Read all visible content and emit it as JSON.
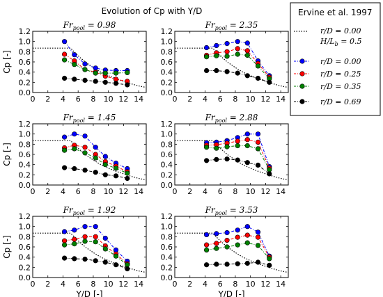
{
  "figure_title": "Evolution of Cp with Y/D",
  "colors": {
    "series_0": "#0000ff",
    "series_1": "#ff0000",
    "series_2": "#008000",
    "series_3": "#000000",
    "reference": "#000000"
  },
  "legend": {
    "reference_title": "Ervine et al. 1997",
    "reference_lines": [
      "r/D = 0.00",
      "H/L_b = 0.5"
    ],
    "entries": [
      "r/D = 0.00",
      "r/D = 0.25",
      "r/D = 0.35",
      "r/D = 0.69"
    ]
  },
  "chart_data": [
    {
      "type": "line",
      "title": "Fr_pool = 0.98",
      "xlabel": "",
      "ylabel": "Cp [-]",
      "xlim": [
        0,
        15
      ],
      "ylim": [
        0,
        1.2
      ],
      "xticks": [
        0,
        2,
        4,
        6,
        8,
        10,
        12,
        14
      ],
      "yticks": [
        0.0,
        0.2,
        0.4,
        0.6,
        0.8,
        1.0,
        1.2
      ],
      "x": [
        4.2,
        5.5,
        6.9,
        8.3,
        9.6,
        11.0,
        12.5
      ],
      "series": [
        {
          "name": "r/D = 0.00",
          "values": [
            1.0,
            0.74,
            0.56,
            0.48,
            0.44,
            0.43,
            0.43
          ]
        },
        {
          "name": "r/D = 0.25",
          "values": [
            0.75,
            0.62,
            0.45,
            0.4,
            0.32,
            0.26,
            0.22
          ]
        },
        {
          "name": "r/D = 0.35",
          "values": [
            0.64,
            0.55,
            0.45,
            0.38,
            0.38,
            0.38,
            0.39
          ]
        },
        {
          "name": "r/D = 0.69",
          "values": [
            0.28,
            0.26,
            0.24,
            0.22,
            0.2,
            0.18,
            0.15
          ]
        }
      ],
      "reference": {
        "x": [
          0,
          5,
          6,
          7,
          8,
          9,
          10,
          11,
          12,
          13,
          14,
          15
        ],
        "y": [
          0.87,
          0.87,
          0.72,
          0.59,
          0.49,
          0.4,
          0.33,
          0.27,
          0.22,
          0.17,
          0.13,
          0.1
        ]
      }
    },
    {
      "type": "line",
      "title": "Fr_pool = 2.35",
      "xlabel": "",
      "ylabel": "",
      "xlim": [
        0,
        15
      ],
      "ylim": [
        0,
        1.2
      ],
      "xticks": [
        0,
        2,
        4,
        6,
        8,
        10,
        12,
        14
      ],
      "yticks": [
        0.0,
        0.2,
        0.4,
        0.6,
        0.8,
        1.0,
        1.2
      ],
      "x": [
        4.2,
        5.5,
        6.9,
        8.3,
        9.6,
        11.0,
        12.5
      ],
      "series": [
        {
          "name": "r/D = 0.00",
          "values": [
            0.88,
            0.92,
            0.96,
            1.0,
            0.97,
            0.62,
            0.33
          ]
        },
        {
          "name": "r/D = 0.25",
          "values": [
            0.73,
            0.78,
            0.8,
            0.86,
            0.82,
            0.57,
            0.3
          ]
        },
        {
          "name": "r/D = 0.35",
          "values": [
            0.7,
            0.72,
            0.71,
            0.75,
            0.73,
            0.52,
            0.27
          ]
        },
        {
          "name": "r/D = 0.69",
          "values": [
            0.43,
            0.43,
            0.41,
            0.38,
            0.33,
            0.28,
            0.2
          ]
        }
      ],
      "reference": {
        "x": [
          0,
          5,
          6,
          7,
          8,
          9,
          10,
          11,
          12,
          13,
          14,
          15
        ],
        "y": [
          0.87,
          0.87,
          0.72,
          0.59,
          0.49,
          0.4,
          0.33,
          0.27,
          0.22,
          0.17,
          0.13,
          0.1
        ]
      }
    },
    {
      "type": "line",
      "title": "Fr_pool = 1.45",
      "xlabel": "",
      "ylabel": "Cp [-]",
      "xlim": [
        0,
        15
      ],
      "ylim": [
        0,
        1.2
      ],
      "xticks": [
        0,
        2,
        4,
        6,
        8,
        10,
        12,
        14
      ],
      "yticks": [
        0.0,
        0.2,
        0.4,
        0.6,
        0.8,
        1.0,
        1.2
      ],
      "x": [
        4.2,
        5.5,
        6.9,
        8.3,
        9.6,
        11.0,
        12.5
      ],
      "series": [
        {
          "name": "r/D = 0.00",
          "values": [
            0.94,
            1.0,
            0.96,
            0.74,
            0.56,
            0.43,
            0.32
          ]
        },
        {
          "name": "r/D = 0.25",
          "values": [
            0.73,
            0.78,
            0.74,
            0.6,
            0.46,
            0.37,
            0.26
          ]
        },
        {
          "name": "r/D = 0.35",
          "values": [
            0.68,
            0.71,
            0.63,
            0.53,
            0.4,
            0.33,
            0.23
          ]
        },
        {
          "name": "r/D = 0.69",
          "values": [
            0.34,
            0.32,
            0.29,
            0.25,
            0.2,
            0.18,
            0.13
          ]
        }
      ],
      "reference": {
        "x": [
          0,
          5,
          6,
          7,
          8,
          9,
          10,
          11,
          12,
          13,
          14,
          15
        ],
        "y": [
          0.87,
          0.87,
          0.72,
          0.59,
          0.49,
          0.4,
          0.33,
          0.27,
          0.22,
          0.17,
          0.13,
          0.1
        ]
      }
    },
    {
      "type": "line",
      "title": "Fr_pool = 2.88",
      "xlabel": "",
      "ylabel": "",
      "xlim": [
        0,
        15
      ],
      "ylim": [
        0,
        1.2
      ],
      "xticks": [
        0,
        2,
        4,
        6,
        8,
        10,
        12,
        14
      ],
      "yticks": [
        0.0,
        0.2,
        0.4,
        0.6,
        0.8,
        1.0,
        1.2
      ],
      "x": [
        4.2,
        5.5,
        6.9,
        8.3,
        9.6,
        11.0,
        12.5
      ],
      "series": [
        {
          "name": "r/D = 0.00",
          "values": [
            0.83,
            0.84,
            0.87,
            0.93,
            1.0,
            1.0,
            0.36
          ]
        },
        {
          "name": "r/D = 0.25",
          "values": [
            0.78,
            0.79,
            0.82,
            0.86,
            0.89,
            0.84,
            0.33
          ]
        },
        {
          "name": "r/D = 0.35",
          "values": [
            0.74,
            0.72,
            0.75,
            0.77,
            0.77,
            0.71,
            0.3
          ]
        },
        {
          "name": "r/D = 0.69",
          "values": [
            0.48,
            0.5,
            0.51,
            0.49,
            0.44,
            0.39,
            0.22
          ]
        }
      ],
      "reference": {
        "x": [
          0,
          5,
          6,
          7,
          8,
          9,
          10,
          11,
          12,
          13,
          14,
          15
        ],
        "y": [
          0.87,
          0.87,
          0.72,
          0.59,
          0.49,
          0.4,
          0.33,
          0.27,
          0.22,
          0.17,
          0.13,
          0.1
        ]
      }
    },
    {
      "type": "line",
      "title": "Fr_pool = 1.92",
      "xlabel": "Y/D [-]",
      "ylabel": "Cp [-]",
      "xlim": [
        0,
        15
      ],
      "ylim": [
        0,
        1.2
      ],
      "xticks": [
        0,
        2,
        4,
        6,
        8,
        10,
        12,
        14
      ],
      "yticks": [
        0.0,
        0.2,
        0.4,
        0.6,
        0.8,
        1.0,
        1.2
      ],
      "x": [
        4.2,
        5.5,
        6.9,
        8.3,
        9.6,
        11.0,
        12.5
      ],
      "series": [
        {
          "name": "r/D = 0.00",
          "values": [
            0.9,
            0.93,
            1.0,
            1.0,
            0.77,
            0.54,
            0.32
          ]
        },
        {
          "name": "r/D = 0.25",
          "values": [
            0.72,
            0.75,
            0.8,
            0.8,
            0.62,
            0.46,
            0.27
          ]
        },
        {
          "name": "r/D = 0.35",
          "values": [
            0.64,
            0.66,
            0.71,
            0.7,
            0.56,
            0.42,
            0.25
          ]
        },
        {
          "name": "r/D = 0.69",
          "values": [
            0.38,
            0.37,
            0.36,
            0.33,
            0.3,
            0.25,
            0.17
          ]
        }
      ],
      "reference": {
        "x": [
          0,
          5,
          6,
          7,
          8,
          9,
          10,
          11,
          12,
          13,
          14,
          15
        ],
        "y": [
          0.87,
          0.87,
          0.72,
          0.59,
          0.49,
          0.4,
          0.33,
          0.27,
          0.22,
          0.17,
          0.13,
          0.1
        ]
      }
    },
    {
      "type": "line",
      "title": "Fr_pool = 3.53",
      "xlabel": "Y/D [-]",
      "ylabel": "",
      "xlim": [
        0,
        15
      ],
      "ylim": [
        0,
        1.2
      ],
      "xticks": [
        0,
        2,
        4,
        6,
        8,
        10,
        12,
        14
      ],
      "yticks": [
        0.0,
        0.2,
        0.4,
        0.6,
        0.8,
        1.0,
        1.2
      ],
      "x": [
        4.2,
        5.5,
        6.9,
        8.3,
        9.6,
        11.0,
        12.5
      ],
      "series": [
        {
          "name": "r/D = 0.00",
          "values": [
            0.84,
            0.86,
            0.88,
            0.93,
            1.0,
            0.89,
            0.42
          ]
        },
        {
          "name": "r/D = 0.25",
          "values": [
            0.64,
            0.67,
            0.73,
            0.79,
            0.83,
            0.79,
            0.4
          ]
        },
        {
          "name": "r/D = 0.35",
          "values": [
            0.54,
            0.57,
            0.6,
            0.64,
            0.68,
            0.63,
            0.37
          ]
        },
        {
          "name": "r/D = 0.69",
          "values": [
            0.25,
            0.26,
            0.26,
            0.27,
            0.28,
            0.3,
            0.24
          ]
        }
      ],
      "reference": {
        "x": [
          0,
          5,
          6,
          7,
          8,
          9,
          10,
          11,
          12,
          13,
          14,
          15
        ],
        "y": [
          0.87,
          0.87,
          0.72,
          0.59,
          0.49,
          0.4,
          0.33,
          0.27,
          0.22,
          0.17,
          0.13,
          0.1
        ]
      }
    }
  ]
}
